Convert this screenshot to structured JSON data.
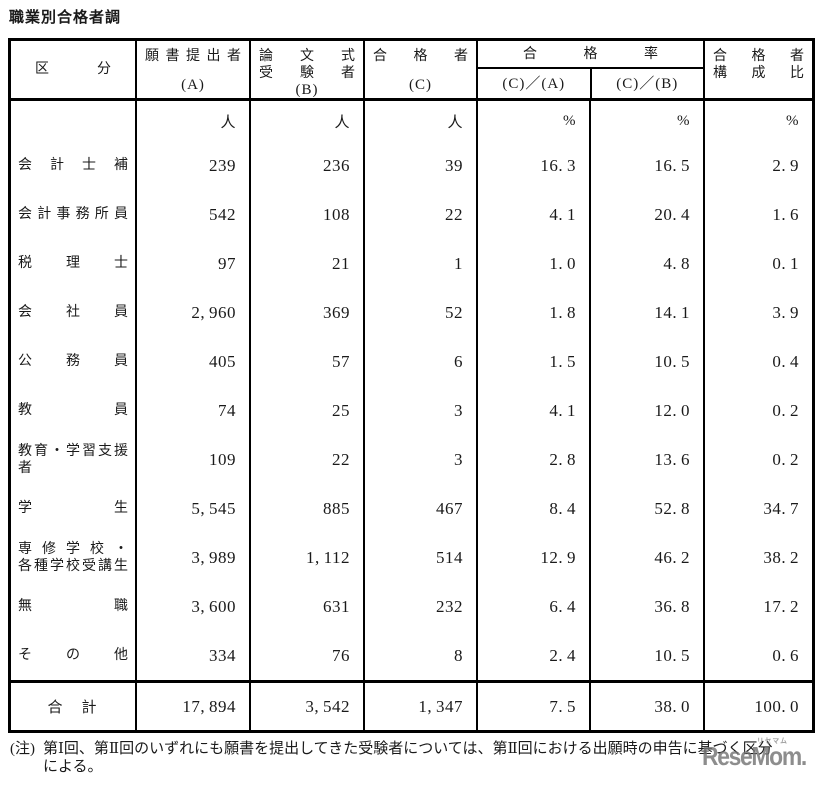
{
  "title": "職業別合格者調",
  "table": {
    "header": {
      "category": "区分",
      "applicants": {
        "line": "願書提出者",
        "sub": "(A)"
      },
      "essay": {
        "lines": [
          "論文式",
          "受験者"
        ],
        "sub": "(B)"
      },
      "passers": {
        "line": "合格者",
        "sub": "(C)"
      },
      "pass_rate": {
        "label": "合格率",
        "sub_a": "(C)／(A)",
        "sub_b": "(C)／(B)"
      },
      "composition": {
        "lines": [
          "合格者",
          "構成比"
        ]
      }
    },
    "units": [
      "人",
      "人",
      "人",
      "%",
      "%",
      "%"
    ],
    "rows": [
      {
        "label_lines": [
          "会計士補"
        ],
        "values": [
          "239",
          "236",
          "39",
          "16.3",
          "16.5",
          "2.9"
        ]
      },
      {
        "label_lines": [
          "会計事務所員"
        ],
        "values": [
          "542",
          "108",
          "22",
          "4.1",
          "20.4",
          "1.6"
        ]
      },
      {
        "label_lines": [
          "税理士"
        ],
        "values": [
          "97",
          "21",
          "1",
          "1.0",
          "4.8",
          "0.1"
        ]
      },
      {
        "label_lines": [
          "会社員"
        ],
        "values": [
          "2,960",
          "369",
          "52",
          "1.8",
          "14.1",
          "3.9"
        ]
      },
      {
        "label_lines": [
          "公務員"
        ],
        "values": [
          "405",
          "57",
          "6",
          "1.5",
          "10.5",
          "0.4"
        ]
      },
      {
        "label_lines": [
          "教員"
        ],
        "values": [
          "74",
          "25",
          "3",
          "4.1",
          "12.0",
          "0.2"
        ]
      },
      {
        "label_lines": [
          "教育・学習支援者"
        ],
        "values": [
          "109",
          "22",
          "3",
          "2.8",
          "13.6",
          "0.2"
        ]
      },
      {
        "label_lines": [
          "学生"
        ],
        "values": [
          "5,545",
          "885",
          "467",
          "8.4",
          "52.8",
          "34.7"
        ]
      },
      {
        "label_lines": [
          "専修学校・",
          "各種学校受講生"
        ],
        "values": [
          "3,989",
          "1,112",
          "514",
          "12.9",
          "46.2",
          "38.2"
        ]
      },
      {
        "label_lines": [
          "無職"
        ],
        "values": [
          "3,600",
          "631",
          "232",
          "6.4",
          "36.8",
          "17.2"
        ]
      },
      {
        "label_lines": [
          "その他"
        ],
        "values": [
          "334",
          "76",
          "8",
          "2.4",
          "10.5",
          "0.6"
        ]
      }
    ],
    "total": {
      "label": "合　計",
      "values": [
        "17,894",
        "3,542",
        "1,347",
        "7.5",
        "38.0",
        "100.0"
      ]
    }
  },
  "note": {
    "marker": "(注)",
    "lines": [
      "第Ⅰ回、第Ⅱ回のいずれにも願書を提出してきた受験者については、第Ⅱ回における出願時の申告に基づく区分",
      "による。"
    ]
  },
  "watermark": {
    "text": "ReseMom.",
    "kana": "リセマム"
  }
}
